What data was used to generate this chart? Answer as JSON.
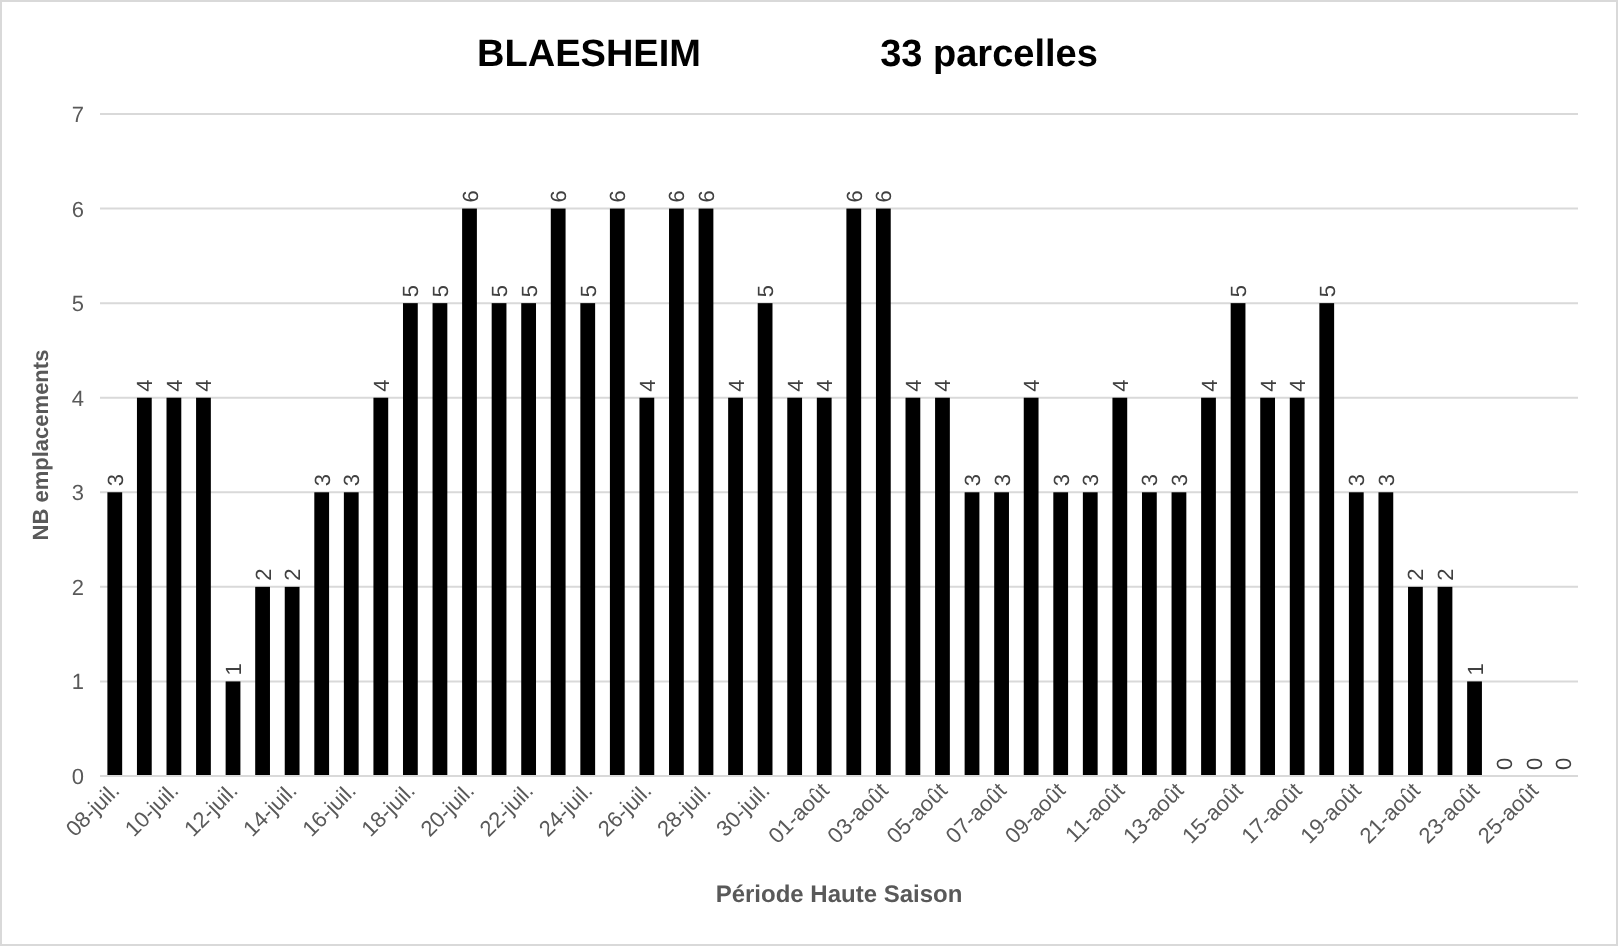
{
  "chart_data": {
    "type": "bar",
    "title": "BLAESHEIM",
    "subtitle": "33 parcelles",
    "xlabel": "Période Haute Saison",
    "ylabel": "NB emplacements",
    "categories": [
      "08-juil.",
      null,
      "10-juil.",
      null,
      "12-juil.",
      null,
      "14-juil.",
      null,
      "16-juil.",
      null,
      "18-juil.",
      null,
      "20-juil.",
      null,
      "22-juil.",
      null,
      "24-juil.",
      null,
      "26-juil.",
      null,
      "28-juil.",
      null,
      "30-juil.",
      null,
      "01-août",
      null,
      "03-août",
      null,
      "05-août",
      null,
      "07-août",
      null,
      "09-août",
      null,
      "11-août",
      null,
      "13-août",
      null,
      "15-août",
      null,
      "17-août",
      null,
      "19-août",
      null,
      "21-août",
      null,
      "23-août",
      null,
      "25-août",
      null
    ],
    "values": [
      3,
      4,
      4,
      4,
      1,
      2,
      2,
      3,
      3,
      4,
      5,
      5,
      6,
      5,
      5,
      6,
      5,
      6,
      4,
      6,
      6,
      4,
      5,
      4,
      4,
      6,
      6,
      4,
      4,
      3,
      3,
      4,
      3,
      3,
      4,
      3,
      3,
      4,
      5,
      4,
      4,
      5,
      3,
      3,
      2,
      2,
      1,
      0,
      0,
      0
    ],
    "color": "#000000",
    "ylim": [
      0,
      7
    ],
    "yticks": [
      0,
      1,
      2,
      3,
      4,
      5,
      6,
      7
    ],
    "grid": "y",
    "data_labels": true
  }
}
